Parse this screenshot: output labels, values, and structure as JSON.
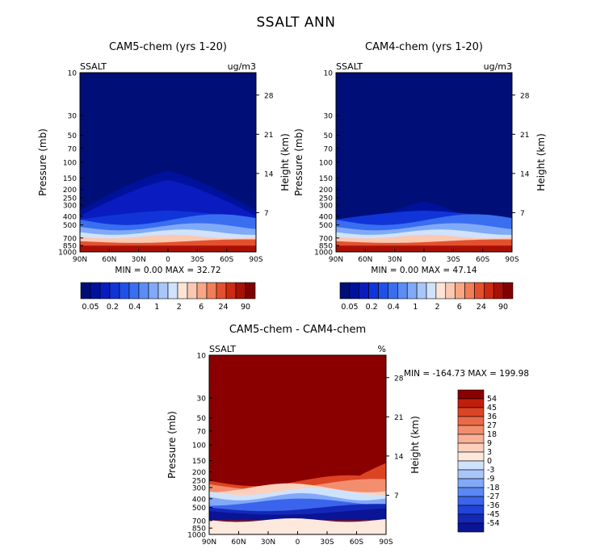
{
  "figure_title": "SSALT ANN",
  "colors": {
    "blue_ramp": [
      "#000e78",
      "#00129c",
      "#0a1cc0",
      "#1034d8",
      "#2050e8",
      "#3a6ef0",
      "#5c8cf4",
      "#80aaf8",
      "#a8c6fa",
      "#d0e2fc",
      "#fde4d6",
      "#fbc8b2",
      "#f8a684",
      "#f07e58",
      "#e4502e",
      "#cc2a12",
      "#a81006",
      "#800000"
    ],
    "diff_ramp": [
      "#0a1494",
      "#1428b8",
      "#2044d8",
      "#3a64ec",
      "#5c88f4",
      "#82a8f8",
      "#a8c6fa",
      "#cfe2fc",
      "#fde8dc",
      "#fcd0bc",
      "#f8b096",
      "#f28e6e",
      "#ea6a48",
      "#dc4424",
      "#c01e0a",
      "#8a0000"
    ]
  },
  "chart_data": [
    {
      "type": "heatmap",
      "title": "CAM5-chem (yrs 1-20)",
      "variable_label": "SSALT",
      "units_label": "ug/m3",
      "ylabel": "Pressure (mb)",
      "ylabel_right": "Height (km)",
      "x_ticks": [
        "90N",
        "60N",
        "30N",
        "0",
        "30S",
        "60S",
        "90S"
      ],
      "y_ticks": [
        "10",
        "30",
        "50",
        "70",
        "100",
        "150",
        "200",
        "250",
        "300",
        "400",
        "500",
        "700",
        "850",
        "1000"
      ],
      "height_ticks": [
        "28",
        "21",
        "14",
        "7"
      ],
      "ylim": [
        1000,
        10
      ],
      "stats": {
        "min_label": "MIN =",
        "min": "0.00",
        "max_label": "MAX =",
        "max": "32.72"
      },
      "colorbar_labels": [
        "0.05",
        "0.2",
        "0.4",
        "1",
        "2",
        "6",
        "24",
        "90"
      ],
      "description_levels": "log-spaced concentration levels"
    },
    {
      "type": "heatmap",
      "title": "CAM4-chem (yrs 1-20)",
      "variable_label": "SSALT",
      "units_label": "ug/m3",
      "ylabel": "Pressure (mb)",
      "ylabel_right": "Height (km)",
      "x_ticks": [
        "90N",
        "60N",
        "30N",
        "0",
        "30S",
        "60S",
        "90S"
      ],
      "y_ticks": [
        "10",
        "30",
        "50",
        "70",
        "100",
        "150",
        "200",
        "250",
        "300",
        "400",
        "500",
        "700",
        "850",
        "1000"
      ],
      "height_ticks": [
        "28",
        "21",
        "14",
        "7"
      ],
      "ylim": [
        1000,
        10
      ],
      "stats": {
        "min_label": "MIN =",
        "min": "0.00",
        "max_label": "MAX =",
        "max": "47.14"
      },
      "colorbar_labels": [
        "0.05",
        "0.2",
        "0.4",
        "1",
        "2",
        "6",
        "24",
        "90"
      ]
    },
    {
      "type": "heatmap",
      "title": "CAM5-chem - CAM4-chem",
      "variable_label": "SSALT",
      "units_label": "%",
      "ylabel": "Pressure (mb)",
      "ylabel_right": "Height (km)",
      "x_ticks": [
        "90N",
        "60N",
        "30N",
        "0",
        "30S",
        "60S",
        "90S"
      ],
      "y_ticks": [
        "10",
        "30",
        "50",
        "70",
        "100",
        "150",
        "200",
        "250",
        "300",
        "400",
        "500",
        "700",
        "850",
        "1000"
      ],
      "height_ticks": [
        "28",
        "21",
        "14",
        "7"
      ],
      "ylim": [
        1000,
        10
      ],
      "stats_text": "MIN = -164.73  MAX = 199.98",
      "colorbar_labels": [
        "54",
        "45",
        "36",
        "27",
        "18",
        "9",
        "3",
        "0",
        "-3",
        "-9",
        "-18",
        "-27",
        "-36",
        "-45",
        "-54"
      ]
    }
  ]
}
